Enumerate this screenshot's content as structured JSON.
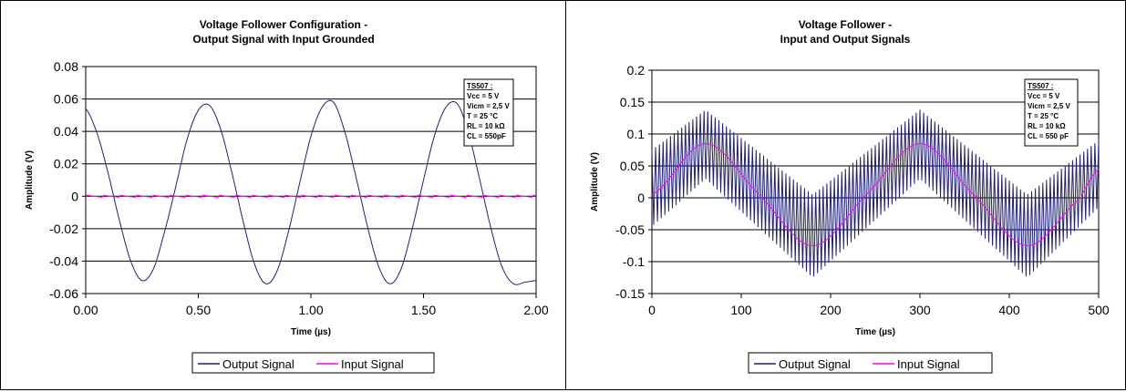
{
  "colors": {
    "output": "#1f1f7a",
    "input": "#ff00ff",
    "grid": "#000000"
  },
  "chart_data": [
    {
      "type": "line",
      "title": [
        "Voltage Follower Configuration -",
        "Output Signal with Input Grounded"
      ],
      "xlabel": "Time (µs)",
      "ylabel": "Amplitude (V)",
      "xlim": [
        0,
        2
      ],
      "ylim": [
        -0.06,
        0.08
      ],
      "xticks": [
        "0.00",
        "0.50",
        "1.00",
        "1.50",
        "2.00"
      ],
      "yticks": [
        "-0.06",
        "-0.04",
        "-0.02",
        "0",
        "0.02",
        "0.04",
        "0.06",
        "0.08"
      ],
      "grid": "horizontal",
      "legend_position": "bottom",
      "annotation": [
        "TS507 :",
        "Vcc = 5 V",
        "Vicm = 2,5 V",
        "T = 25 °C",
        "RL = 10 kΩ",
        "CL = 550pF"
      ],
      "series": [
        {
          "name": "Output Signal",
          "color": "#1f1f7a",
          "x": [
            0,
            0.05,
            0.1,
            0.15,
            0.2,
            0.25,
            0.3,
            0.35,
            0.4,
            0.45,
            0.5,
            0.55,
            0.6,
            0.65,
            0.7,
            0.75,
            0.8,
            0.85,
            0.9,
            0.95,
            1.0,
            1.05,
            1.1,
            1.15,
            1.2,
            1.25,
            1.3,
            1.35,
            1.4,
            1.45,
            1.5,
            1.55,
            1.6,
            1.65,
            1.7,
            1.75,
            1.8,
            1.85,
            1.9,
            1.95,
            2.0
          ],
          "y": [
            0.054,
            0.039,
            0.014,
            -0.015,
            -0.04,
            -0.052,
            -0.045,
            -0.022,
            0.006,
            0.035,
            0.053,
            0.056,
            0.041,
            0.014,
            -0.016,
            -0.042,
            -0.054,
            -0.046,
            -0.022,
            0.008,
            0.037,
            0.055,
            0.058,
            0.04,
            0.012,
            -0.018,
            -0.043,
            -0.054,
            -0.045,
            -0.02,
            0.01,
            0.038,
            0.055,
            0.057,
            0.039,
            0.01,
            -0.02,
            -0.044,
            -0.054,
            -0.053,
            -0.052
          ]
        },
        {
          "name": "Input Signal",
          "color": "#ff00ff",
          "x": [
            0,
            2
          ],
          "y": [
            0,
            0
          ]
        }
      ]
    },
    {
      "type": "line",
      "title": [
        "Voltage Follower -",
        "Input and Output Signals"
      ],
      "xlabel": "Time (µs)",
      "ylabel": "Amplitude (V)",
      "xlim": [
        0,
        500
      ],
      "ylim": [
        -0.15,
        0.2
      ],
      "xticks": [
        "0",
        "100",
        "200",
        "300",
        "400",
        "500"
      ],
      "yticks": [
        "-0.15",
        "-0.1",
        "-0.05",
        "0",
        "0.05",
        "0.1",
        "0.15",
        "0.2"
      ],
      "grid": "horizontal",
      "legend_position": "bottom",
      "annotation": [
        "TS507 :",
        "Vcc = 5 V",
        "Vicm = 2,5 V",
        "T = 25 °C",
        "RL = 10 kΩ",
        "CL = 550 pF"
      ],
      "series": [
        {
          "name": "Output Signal",
          "color": "#1f1f7a",
          "x": [
            0,
            60,
            180,
            300,
            420,
            500
          ],
          "y_envelope_upper": [
            0.075,
            0.138,
            0.005,
            0.138,
            0.005,
            0.09
          ],
          "y_envelope_lower": [
            -0.045,
            0.03,
            -0.125,
            0.03,
            -0.125,
            -0.015
          ]
        },
        {
          "name": "Input Signal",
          "color": "#ff00ff",
          "x": [
            0,
            60,
            120,
            180,
            240,
            300,
            360,
            420,
            480,
            500
          ],
          "y": [
            0.005,
            0.085,
            0.005,
            -0.075,
            0.005,
            0.085,
            0.005,
            -0.075,
            0.0,
            0.045
          ]
        }
      ]
    }
  ]
}
